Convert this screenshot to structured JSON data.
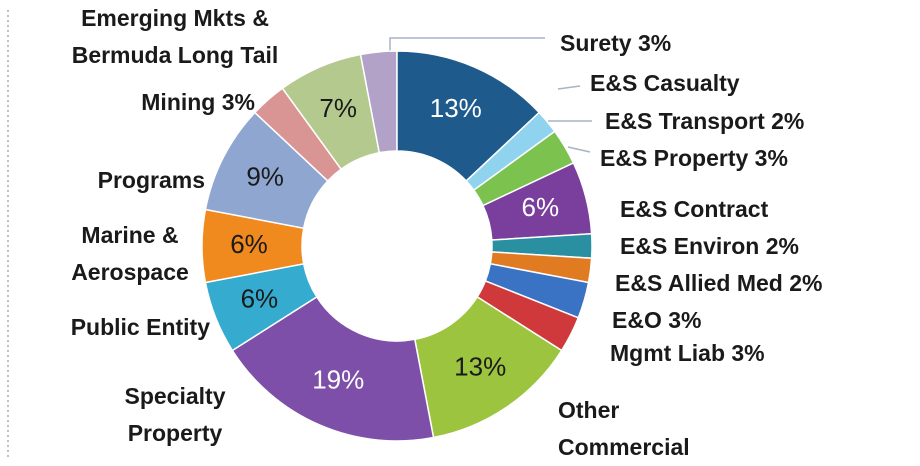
{
  "chart_data": {
    "type": "donut",
    "categories": [
      "Surety 3%",
      "E&S Casualty",
      "E&S Transport 2%",
      "E&S Property 3%",
      "E&S Contract",
      "E&S Environ 2%",
      "E&S Allied Med 2%",
      "E&O 3%",
      "Mgmt Liab 3%",
      "Other\nCommercial",
      "Specialty\nProperty",
      "Public Entity",
      "Marine &\nAerospace",
      "Programs",
      "Mining 3%",
      "Emerging Mkts &\nBermuda Long Tail"
    ],
    "values": [
      3,
      13,
      2,
      3,
      6,
      2,
      2,
      3,
      3,
      13,
      19,
      6,
      6,
      9,
      3,
      7
    ],
    "value_labels": [
      null,
      "13%",
      null,
      null,
      "6%",
      null,
      null,
      null,
      null,
      "13%",
      "19%",
      "6%",
      "6%",
      "9%",
      null,
      "7%"
    ],
    "colors": [
      "#b3a2c7",
      "#1f5a8c",
      "#8fd3ef",
      "#7cc24f",
      "#7a3e9d",
      "#2a8fa0",
      "#e07b22",
      "#3a73c4",
      "#d0393b",
      "#9cc43e",
      "#7e4fa8",
      "#35abd0",
      "#f08a1e",
      "#8ea6d0",
      "#d99594",
      "#b4c98e"
    ],
    "value_label_colors": [
      null,
      "#ffffff",
      null,
      null,
      "#ffffff",
      null,
      null,
      null,
      null,
      "#1a1a1a",
      "#ffffff",
      "#1a1a1a",
      "#1a1a1a",
      "#1a1a1a",
      null,
      "#1a1a1a"
    ]
  }
}
